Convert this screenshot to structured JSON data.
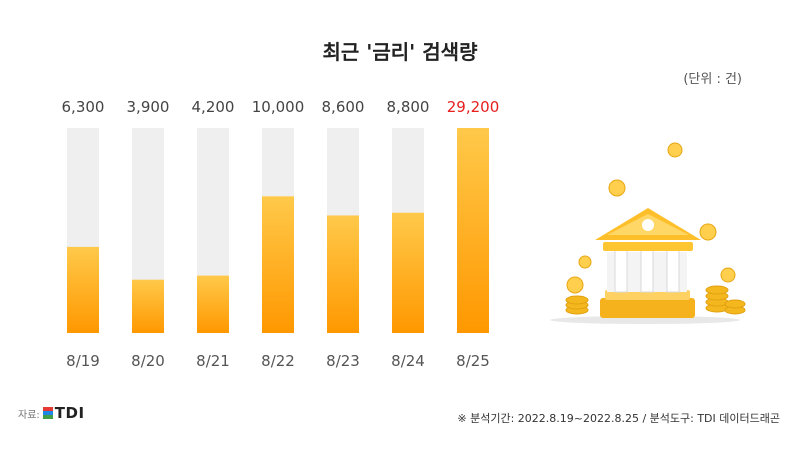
{
  "title": "최근 '금리' 검색량",
  "unit": "(단위 : 건)",
  "source_label": "자료:",
  "logo_text": "TDI",
  "footnote": "※ 분석기간: 2022.8.19~2022.8.25  / 분석도구: TDI 데이터드래곤",
  "colors": {
    "bar_top": "#ffc94a",
    "bar_bottom": "#ff9e00",
    "track": "#efefef",
    "highlight_text": "#e61e1e"
  },
  "chart_data": {
    "type": "bar",
    "categories": [
      "8/19",
      "8/20",
      "8/21",
      "8/22",
      "8/23",
      "8/24",
      "8/25"
    ],
    "values": [
      6300,
      3900,
      4200,
      10000,
      8600,
      8800,
      29200
    ],
    "value_labels": [
      "6,300",
      "3,900",
      "4,200",
      "10,000",
      "8,600",
      "8,800",
      "29,200"
    ],
    "highlight_index": 6,
    "ylim": [
      0,
      15000
    ],
    "grid": false
  }
}
